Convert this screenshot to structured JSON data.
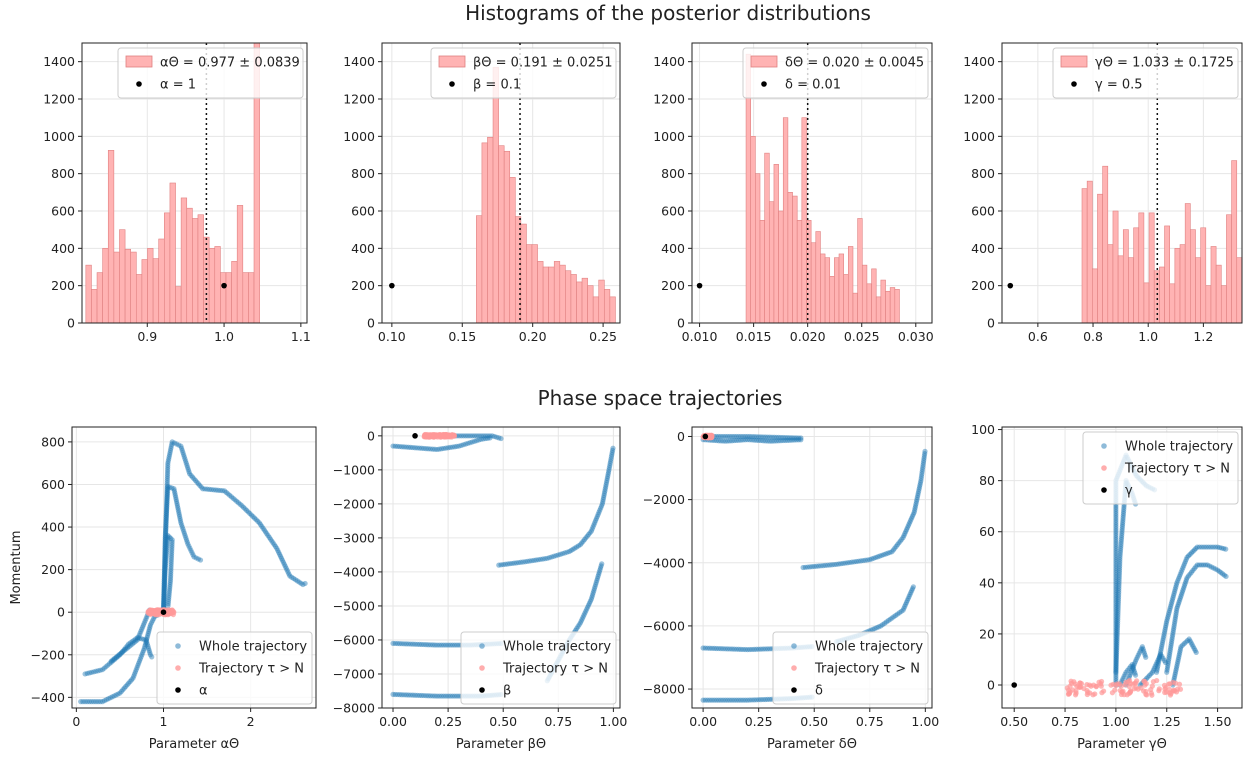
{
  "titles": {
    "top": "Histograms of the posterior distributions",
    "bottom": "Phase space trajectories"
  },
  "colors": {
    "hist_fill": "#ffb3b3",
    "hist_edge": "#e08080",
    "whole": "#1f77b4",
    "tail": "#ff9999",
    "marker": "#000000"
  },
  "chart_data": [
    {
      "type": "bar",
      "panel": "hist-alpha",
      "title": "",
      "xlabel": "",
      "ylabel": "",
      "xlim": [
        0.815,
        1.108
      ],
      "ylim": [
        0,
        1500
      ],
      "xticks": [
        0.9,
        1.0,
        1.1
      ],
      "yticks": [
        0,
        200,
        400,
        600,
        800,
        1000,
        1200,
        1400
      ],
      "grid": true,
      "bins_x0": 0.82,
      "bin_width": 0.0073,
      "values": [
        310,
        180,
        270,
        400,
        925,
        380,
        500,
        395,
        380,
        260,
        340,
        400,
        345,
        450,
        590,
        750,
        195,
        670,
        615,
        560,
        580,
        460,
        400,
        410,
        270,
        270,
        330,
        630,
        270,
        270,
        1500
      ],
      "vline": 0.977,
      "marker": [
        1.0,
        200
      ],
      "legend": {
        "position": "top-right",
        "entries": [
          "αΘ = 0.977 ± 0.0839",
          "α = 1"
        ]
      }
    },
    {
      "type": "bar",
      "panel": "hist-beta",
      "title": "",
      "xlabel": "",
      "ylabel": "",
      "xlim": [
        0.093,
        0.262
      ],
      "ylim": [
        0,
        1500
      ],
      "xticks": [
        0.1,
        0.15,
        0.2,
        0.25
      ],
      "yticks": [
        0,
        200,
        400,
        600,
        800,
        1000,
        1200,
        1400
      ],
      "grid": true,
      "bins_x0": 0.16,
      "bin_width": 0.00395,
      "values": [
        575,
        965,
        995,
        1370,
        950,
        920,
        780,
        570,
        530,
        420,
        420,
        330,
        300,
        300,
        330,
        310,
        280,
        260,
        220,
        240,
        200,
        140,
        230,
        180,
        140
      ],
      "vline": 0.191,
      "marker": [
        0.1,
        200
      ],
      "legend": {
        "position": "top-right",
        "entries": [
          "βΘ = 0.191 ± 0.0251",
          "β = 0.1"
        ]
      }
    },
    {
      "type": "bar",
      "panel": "hist-delta",
      "title": "",
      "xlabel": "",
      "ylabel": "",
      "xlim": [
        0.0093,
        0.0315
      ],
      "ylim": [
        0,
        1500
      ],
      "xticks": [
        0.01,
        0.015,
        0.02,
        0.025,
        0.03
      ],
      "yticks": [
        0,
        200,
        400,
        600,
        800,
        1000,
        1200,
        1400
      ],
      "grid": true,
      "bins_x0": 0.0143,
      "bin_width": 0.00043,
      "values": [
        1440,
        1000,
        800,
        550,
        910,
        650,
        850,
        600,
        1100,
        700,
        680,
        550,
        1100,
        550,
        430,
        490,
        370,
        350,
        250,
        350,
        370,
        260,
        410,
        160,
        560,
        310,
        210,
        290,
        140,
        230,
        170,
        190,
        180
      ],
      "vline": 0.02,
      "marker": [
        0.01,
        200
      ],
      "legend": {
        "position": "top-right",
        "entries": [
          "δΘ = 0.020 ± 0.0045",
          "δ = 0.01"
        ]
      }
    },
    {
      "type": "bar",
      "panel": "hist-gamma",
      "title": "",
      "xlabel": "",
      "ylabel": "",
      "xlim": [
        0.47,
        1.34
      ],
      "ylim": [
        0,
        1500
      ],
      "xticks": [
        0.6,
        0.8,
        1.0,
        1.2
      ],
      "yticks": [
        0,
        200,
        400,
        600,
        800,
        1000,
        1200,
        1400
      ],
      "grid": true,
      "bins_x0": 0.76,
      "bin_width": 0.0187,
      "values": [
        720,
        760,
        290,
        690,
        840,
        420,
        600,
        360,
        500,
        350,
        510,
        590,
        215,
        590,
        280,
        300,
        520,
        210,
        400,
        420,
        640,
        500,
        350,
        510,
        200,
        410,
        310,
        200,
        580,
        870,
        350
      ],
      "vline": 1.033,
      "marker": [
        0.5,
        200
      ],
      "legend": {
        "position": "top-right",
        "entries": [
          "γΘ = 1.033 ± 0.1725",
          "γ = 0.5"
        ]
      }
    },
    {
      "type": "scatter",
      "panel": "phase-alpha",
      "title": "",
      "xlabel": "Parameter αΘ",
      "ylabel": "Momentum",
      "xlim": [
        -0.05,
        2.75
      ],
      "ylim": [
        -450,
        870
      ],
      "xticks": [
        0,
        1,
        2
      ],
      "yticks": [
        -400,
        -200,
        0,
        200,
        400,
        600,
        800
      ],
      "grid": true,
      "whole_segments": [
        [
          [
            0.05,
            -420
          ],
          [
            0.3,
            -420
          ],
          [
            0.5,
            -380
          ],
          [
            0.65,
            -310
          ],
          [
            0.78,
            -170
          ],
          [
            0.85,
            -60
          ],
          [
            0.9,
            -20
          ],
          [
            0.95,
            -10
          ]
        ],
        [
          [
            0.1,
            -290
          ],
          [
            0.3,
            -270
          ],
          [
            0.5,
            -200
          ],
          [
            0.6,
            -150
          ],
          [
            0.7,
            -120
          ],
          [
            0.8,
            -130
          ],
          [
            0.85,
            -200
          ],
          [
            0.88,
            -220
          ]
        ],
        [
          [
            0.4,
            -230
          ],
          [
            0.55,
            -180
          ],
          [
            0.7,
            -130
          ],
          [
            0.8,
            -30
          ],
          [
            0.85,
            20
          ]
        ],
        [
          [
            1.0,
            0
          ],
          [
            1.02,
            300
          ],
          [
            1.05,
            700
          ],
          [
            1.1,
            800
          ],
          [
            1.2,
            780
          ],
          [
            1.3,
            650
          ],
          [
            1.45,
            580
          ],
          [
            1.7,
            570
          ],
          [
            1.9,
            500
          ],
          [
            2.1,
            420
          ],
          [
            2.3,
            300
          ],
          [
            2.45,
            170
          ],
          [
            2.6,
            130
          ],
          [
            2.65,
            140
          ]
        ],
        [
          [
            1.0,
            0
          ],
          [
            1.02,
            350
          ],
          [
            1.05,
            590
          ],
          [
            1.12,
            580
          ],
          [
            1.2,
            420
          ],
          [
            1.28,
            320
          ],
          [
            1.35,
            260
          ],
          [
            1.45,
            240
          ]
        ],
        [
          [
            1.0,
            0
          ],
          [
            1.02,
            200
          ],
          [
            1.05,
            360
          ],
          [
            1.1,
            340
          ],
          [
            1.08,
            150
          ],
          [
            1.05,
            20
          ]
        ]
      ],
      "tail_range": {
        "x": [
          0.82,
          1.12
        ],
        "y": [
          -12,
          12
        ]
      },
      "marker": [
        1.0,
        0
      ],
      "legend": {
        "position": "bottom-right",
        "entries": [
          "Whole trajectory",
          "Trajectory τ > N",
          "α"
        ]
      }
    },
    {
      "type": "scatter",
      "panel": "phase-beta",
      "title": "",
      "xlabel": "Parameter βΘ",
      "ylabel": "",
      "xlim": [
        -0.05,
        1.03
      ],
      "ylim": [
        -8000,
        260
      ],
      "xticks": [
        0.0,
        0.25,
        0.5,
        0.75,
        1.0
      ],
      "yticks": [
        -8000,
        -7000,
        -6000,
        -5000,
        -4000,
        -3000,
        -2000,
        -1000,
        0
      ],
      "grid": true,
      "whole_segments": [
        [
          [
            0.0,
            -300
          ],
          [
            0.1,
            -350
          ],
          [
            0.2,
            -400
          ],
          [
            0.3,
            -300
          ],
          [
            0.4,
            -100
          ],
          [
            0.45,
            -50
          ]
        ],
        [
          [
            0.15,
            0
          ],
          [
            0.3,
            0
          ],
          [
            0.45,
            0
          ],
          [
            0.5,
            -100
          ]
        ],
        [
          [
            0.48,
            -3800
          ],
          [
            0.6,
            -3700
          ],
          [
            0.7,
            -3600
          ],
          [
            0.8,
            -3400
          ],
          [
            0.85,
            -3200
          ],
          [
            0.9,
            -2800
          ],
          [
            0.95,
            -2000
          ],
          [
            0.98,
            -1000
          ],
          [
            1.0,
            -300
          ]
        ],
        [
          [
            0.0,
            -6100
          ],
          [
            0.2,
            -6150
          ],
          [
            0.35,
            -6150
          ],
          [
            0.5,
            -6100
          ]
        ],
        [
          [
            0.0,
            -7600
          ],
          [
            0.2,
            -7650
          ],
          [
            0.4,
            -7650
          ],
          [
            0.5,
            -7600
          ]
        ],
        [
          [
            0.7,
            -7200
          ],
          [
            0.8,
            -6000
          ],
          [
            0.85,
            -5500
          ],
          [
            0.9,
            -4800
          ],
          [
            0.95,
            -3700
          ]
        ]
      ],
      "tail_range": {
        "x": [
          0.14,
          0.28
        ],
        "y": [
          -40,
          40
        ]
      },
      "marker": [
        0.1,
        0
      ],
      "legend": {
        "position": "bottom-right",
        "entries": [
          "Whole trajectory",
          "Trajectory τ > N",
          "β"
        ]
      }
    },
    {
      "type": "scatter",
      "panel": "phase-delta",
      "title": "",
      "xlabel": "Parameter δΘ",
      "ylabel": "",
      "xlim": [
        -0.05,
        1.03
      ],
      "ylim": [
        -8600,
        300
      ],
      "xticks": [
        0.0,
        0.25,
        0.5,
        0.75,
        1.0
      ],
      "yticks": [
        -8000,
        -6000,
        -4000,
        -2000,
        0
      ],
      "grid": true,
      "whole_segments": [
        [
          [
            0.0,
            -100
          ],
          [
            0.1,
            -150
          ],
          [
            0.2,
            -100
          ],
          [
            0.3,
            -150
          ],
          [
            0.45,
            -100
          ]
        ],
        [
          [
            0.02,
            0
          ],
          [
            0.2,
            0
          ],
          [
            0.45,
            -50
          ]
        ],
        [
          [
            0.45,
            -4150
          ],
          [
            0.6,
            -4050
          ],
          [
            0.75,
            -3900
          ],
          [
            0.85,
            -3650
          ],
          [
            0.9,
            -3200
          ],
          [
            0.95,
            -2400
          ],
          [
            0.98,
            -1400
          ],
          [
            1.0,
            -400
          ]
        ],
        [
          [
            0.0,
            -6700
          ],
          [
            0.2,
            -6750
          ],
          [
            0.4,
            -6700
          ],
          [
            0.5,
            -6650
          ]
        ],
        [
          [
            0.0,
            -8350
          ],
          [
            0.2,
            -8350
          ],
          [
            0.4,
            -8300
          ],
          [
            0.5,
            -8250
          ]
        ],
        [
          [
            0.6,
            -6500
          ],
          [
            0.7,
            -6300
          ],
          [
            0.8,
            -6000
          ],
          [
            0.9,
            -5500
          ],
          [
            0.95,
            -4700
          ]
        ]
      ],
      "tail_range": {
        "x": [
          0.0,
          0.04
        ],
        "y": [
          -40,
          40
        ]
      },
      "marker": [
        0.01,
        0
      ],
      "legend": {
        "position": "bottom-right",
        "entries": [
          "Whole trajectory",
          "Trajectory τ > N",
          "δ"
        ]
      }
    },
    {
      "type": "scatter",
      "panel": "phase-gamma",
      "title": "",
      "xlabel": "Parameter γΘ",
      "ylabel": "",
      "xlim": [
        0.44,
        1.62
      ],
      "ylim": [
        -9,
        101
      ],
      "xticks": [
        0.5,
        0.75,
        1.0,
        1.25,
        1.5
      ],
      "yticks": [
        0,
        20,
        40,
        60,
        80,
        100
      ],
      "grid": true,
      "whole_segments": [
        [
          [
            1.0,
            0
          ],
          [
            1.0,
            20
          ],
          [
            1.0,
            50
          ],
          [
            1.0,
            80
          ],
          [
            1.05,
            90
          ],
          [
            1.1,
            82
          ],
          [
            1.15,
            78
          ],
          [
            1.2,
            76
          ]
        ],
        [
          [
            1.0,
            5
          ],
          [
            1.02,
            50
          ],
          [
            1.05,
            80
          ],
          [
            1.08,
            75
          ],
          [
            1.1,
            70
          ]
        ],
        [
          [
            1.2,
            5
          ],
          [
            1.25,
            25
          ],
          [
            1.3,
            40
          ],
          [
            1.35,
            50
          ],
          [
            1.4,
            54
          ],
          [
            1.5,
            54
          ],
          [
            1.55,
            53
          ]
        ],
        [
          [
            1.25,
            5
          ],
          [
            1.3,
            30
          ],
          [
            1.35,
            42
          ],
          [
            1.4,
            47
          ],
          [
            1.45,
            47
          ],
          [
            1.5,
            45
          ],
          [
            1.55,
            42
          ]
        ],
        [
          [
            1.05,
            0
          ],
          [
            1.1,
            10
          ],
          [
            1.13,
            15
          ],
          [
            1.15,
            10
          ]
        ],
        [
          [
            1.12,
            0
          ],
          [
            1.18,
            5
          ],
          [
            1.22,
            12
          ],
          [
            1.25,
            8
          ]
        ],
        [
          [
            1.28,
            0
          ],
          [
            1.32,
            15
          ],
          [
            1.36,
            18
          ],
          [
            1.4,
            12
          ]
        ],
        [
          [
            1.02,
            0
          ],
          [
            1.05,
            5
          ],
          [
            1.08,
            8
          ],
          [
            1.1,
            3
          ]
        ]
      ],
      "tail_range": {
        "x": [
          0.76,
          1.33
        ],
        "y": [
          -4,
          2
        ]
      },
      "marker": [
        0.5,
        0
      ],
      "legend": {
        "position": "top-right",
        "entries": [
          "Whole trajectory",
          "Trajectory τ > N",
          "γ"
        ]
      }
    }
  ]
}
